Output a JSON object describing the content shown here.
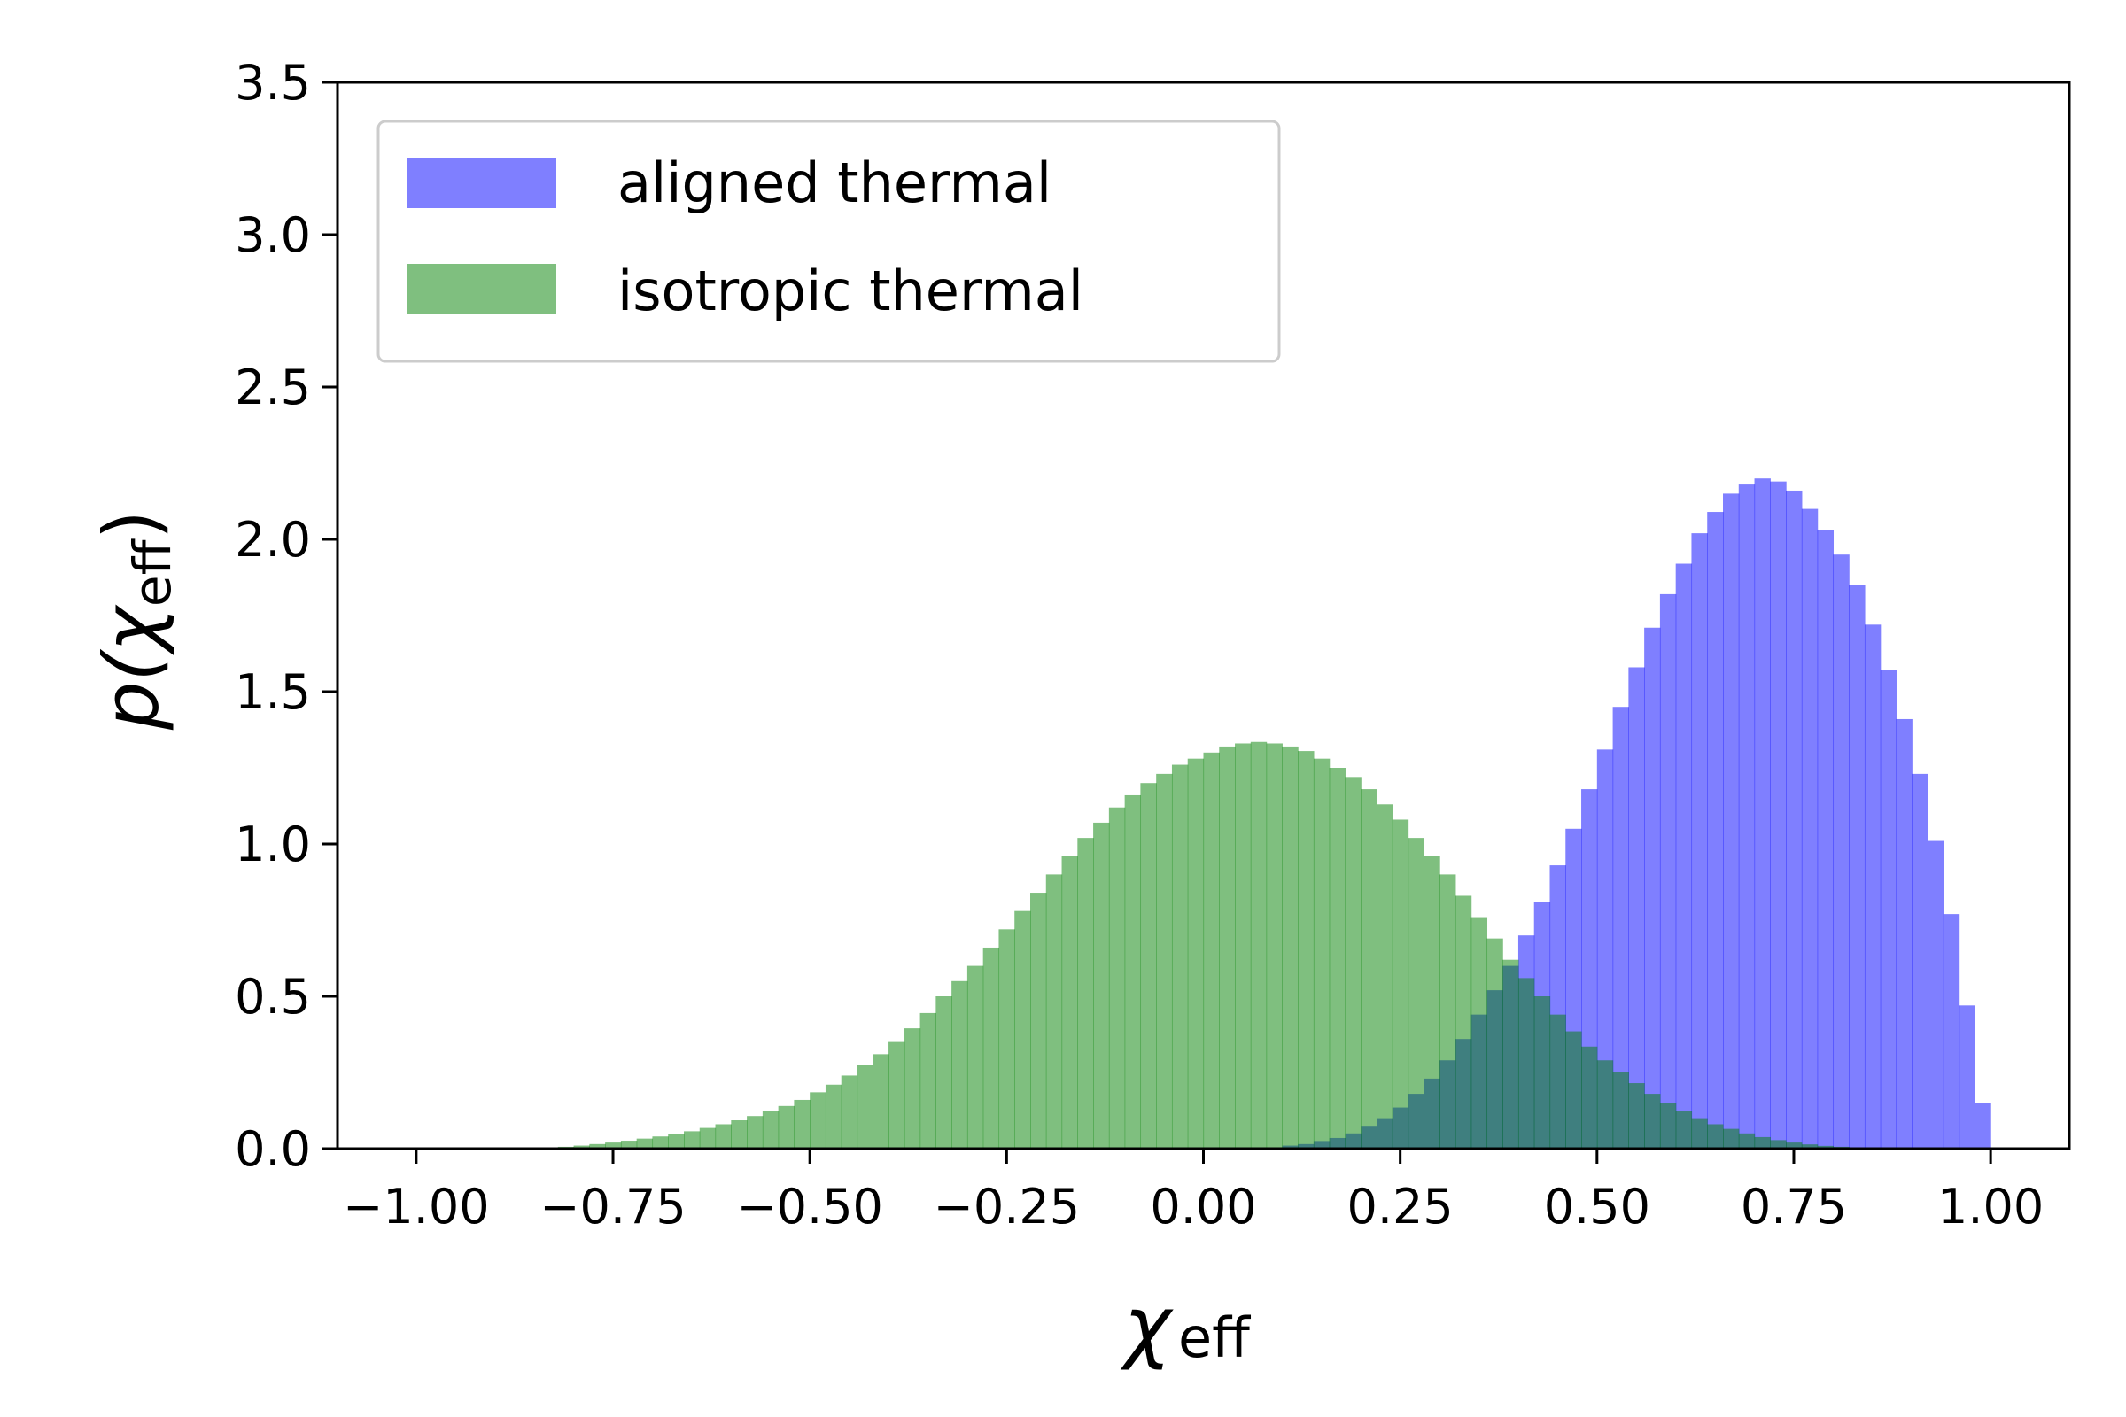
{
  "chart_data": {
    "type": "histogram",
    "xlabel": {
      "main": "χ",
      "sub": "eff"
    },
    "ylabel": {
      "prefix": "p(",
      "main": "χ",
      "sub": "eff",
      "suffix": ")"
    },
    "xlim": [
      -1.1,
      1.1
    ],
    "ylim": [
      0,
      3.5
    ],
    "xticks": [
      -1.0,
      -0.75,
      -0.5,
      -0.25,
      0.0,
      0.25,
      0.5,
      0.75,
      1.0
    ],
    "xtick_labels": [
      "−1.00",
      "−0.75",
      "−0.50",
      "−0.25",
      "0.00",
      "0.25",
      "0.50",
      "0.75",
      "1.00"
    ],
    "yticks": [
      0,
      0.5,
      1.0,
      1.5,
      2.0,
      2.5,
      3.0,
      3.5
    ],
    "ytick_labels": [
      "0.0",
      "0.5",
      "1.0",
      "1.5",
      "2.0",
      "2.5",
      "3.0",
      "3.5"
    ],
    "grid": false,
    "legend_position": "top-left",
    "bin_range": [
      -1.0,
      1.0
    ],
    "bin_count": 100,
    "series": [
      {
        "name": "aligned thermal",
        "color": "#0000ff",
        "opacity": 0.5,
        "values": [
          0,
          0,
          0,
          0,
          0,
          0,
          0,
          0,
          0,
          0,
          0,
          0,
          0,
          0,
          0,
          0,
          0,
          0,
          0,
          0,
          0,
          0,
          0,
          0,
          0,
          0,
          0,
          0,
          0,
          0,
          0,
          0,
          0,
          0,
          0,
          0,
          0,
          0,
          0,
          0,
          0,
          0,
          0,
          0,
          0,
          0,
          0,
          0,
          0,
          0,
          0,
          0,
          0,
          0,
          0,
          0.01,
          0.015,
          0.025,
          0.035,
          0.05,
          0.075,
          0.1,
          0.135,
          0.18,
          0.23,
          0.29,
          0.36,
          0.44,
          0.52,
          0.6,
          0.7,
          0.81,
          0.93,
          1.05,
          1.18,
          1.31,
          1.45,
          1.58,
          1.71,
          1.82,
          1.92,
          2.02,
          2.09,
          2.15,
          2.18,
          2.2,
          2.19,
          2.16,
          2.1,
          2.03,
          1.95,
          1.85,
          1.72,
          1.57,
          1.41,
          1.23,
          1.01,
          0.77,
          0.47,
          0.15
        ]
      },
      {
        "name": "isotropic thermal",
        "color": "#008000",
        "opacity": 0.5,
        "values": [
          0,
          0,
          0,
          0,
          0,
          0,
          0,
          0,
          0.003,
          0.006,
          0.01,
          0.015,
          0.02,
          0.026,
          0.033,
          0.04,
          0.048,
          0.057,
          0.068,
          0.08,
          0.093,
          0.107,
          0.123,
          0.14,
          0.16,
          0.185,
          0.21,
          0.24,
          0.275,
          0.31,
          0.35,
          0.395,
          0.445,
          0.5,
          0.55,
          0.6,
          0.66,
          0.72,
          0.78,
          0.84,
          0.9,
          0.96,
          1.02,
          1.07,
          1.12,
          1.16,
          1.2,
          1.23,
          1.26,
          1.28,
          1.3,
          1.32,
          1.33,
          1.335,
          1.33,
          1.32,
          1.305,
          1.28,
          1.25,
          1.22,
          1.18,
          1.13,
          1.08,
          1.02,
          0.96,
          0.9,
          0.83,
          0.76,
          0.69,
          0.62,
          0.56,
          0.5,
          0.44,
          0.385,
          0.335,
          0.29,
          0.25,
          0.215,
          0.18,
          0.15,
          0.125,
          0.1,
          0.08,
          0.065,
          0.05,
          0.038,
          0.028,
          0.02,
          0.014,
          0.009,
          0.006,
          0.004,
          0.002,
          0.001,
          0,
          0,
          0,
          0,
          0,
          0
        ]
      }
    ]
  }
}
